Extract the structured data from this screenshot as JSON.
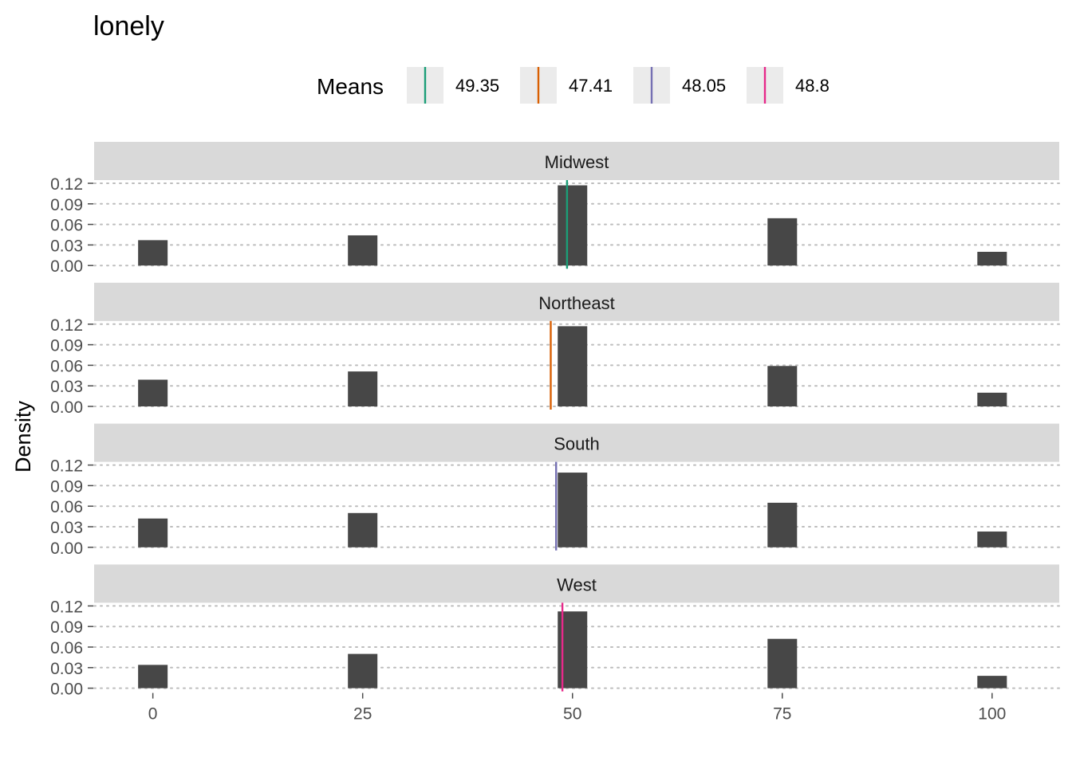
{
  "chart_data": {
    "type": "bar",
    "title": "lonely",
    "xlabel": "",
    "ylabel": "Density",
    "xlim": [
      -7,
      108
    ],
    "ylim": [
      0,
      0.12
    ],
    "x_ticks": [
      0,
      25,
      50,
      75,
      100
    ],
    "y_ticks": [
      "0.00",
      "0.03",
      "0.06",
      "0.09",
      "0.12"
    ],
    "grid": "dotted horizontal",
    "legend": {
      "title": "Means",
      "placement": "top",
      "entries": [
        "49.35",
        "47.41",
        "48.05",
        "48.8"
      ]
    },
    "x": [
      0,
      25,
      50,
      75,
      100
    ],
    "panels": [
      {
        "name": "Midwest",
        "values": [
          0.037,
          0.044,
          0.117,
          0.069,
          0.02
        ],
        "mean": 49.35,
        "color": "#1b9e77"
      },
      {
        "name": "Northeast",
        "values": [
          0.039,
          0.051,
          0.117,
          0.059,
          0.02
        ],
        "mean": 47.41,
        "color": "#d95f02"
      },
      {
        "name": "South",
        "values": [
          0.042,
          0.05,
          0.109,
          0.065,
          0.023
        ],
        "mean": 48.05,
        "color": "#7570b3"
      },
      {
        "name": "West",
        "values": [
          0.034,
          0.05,
          0.112,
          0.072,
          0.018
        ],
        "mean": 48.8,
        "color": "#e7298a"
      }
    ],
    "bar_color": "#474747"
  }
}
